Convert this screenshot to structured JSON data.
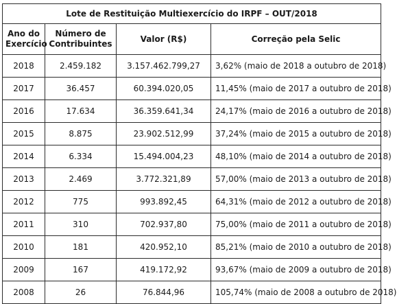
{
  "title": "Lote de Restituição Multiexercício do IRPF – OUT/2018",
  "headers": {
    "ano": [
      "Ano do",
      "Exercício"
    ],
    "numero": [
      "Número de",
      "Contribuintes"
    ],
    "valor": "Valor (R$)",
    "correcao": "Correção pela Selic"
  },
  "rows": [
    {
      "ano": "2018",
      "numero": "2.459.182",
      "valor": "3.157.462.799,27",
      "correcao": "3,62% (maio de 2018 a outubro de 2018)"
    },
    {
      "ano": "2017",
      "numero": "36.457",
      "valor": "60.394.020,05",
      "correcao": "11,45% (maio de 2017 a outubro de 2018)"
    },
    {
      "ano": "2016",
      "numero": "17.634",
      "valor": "36.359.641,34",
      "correcao": "24,17% (maio de 2016 a outubro de 2018)"
    },
    {
      "ano": "2015",
      "numero": "8.875",
      "valor": "23.902.512,99",
      "correcao": "37,24% (maio de 2015 a outubro de 2018)"
    },
    {
      "ano": "2014",
      "numero": "6.334",
      "valor": "15.494.004,23",
      "correcao": "48,10% (maio de 2014 a outubro de 2018)"
    },
    {
      "ano": "2013",
      "numero": "2.469",
      "valor": "3.772.321,89",
      "correcao": "57,00% (maio de 2013 a outubro de 2018)"
    },
    {
      "ano": "2012",
      "numero": "775",
      "valor": "993.892,45",
      "correcao": "64,31% (maio de 2012 a outubro de 2018)"
    },
    {
      "ano": "2011",
      "numero": "310",
      "valor": "702.937,80",
      "correcao": "75,00% (maio de 2011 a outubro de 2018)"
    },
    {
      "ano": "2010",
      "numero": "181",
      "valor": "420.952,10",
      "correcao": "85,21% (maio de 2010 a outubro de 2018)"
    },
    {
      "ano": "2009",
      "numero": "167",
      "valor": "419.172,92",
      "correcao": "93,67% (maio de 2009 a outubro de 2018)"
    },
    {
      "ano": "2008",
      "numero": "26",
      "valor": "76.844,96",
      "correcao": "105,74% (maio de 2008 a outubro de 2018)"
    }
  ]
}
